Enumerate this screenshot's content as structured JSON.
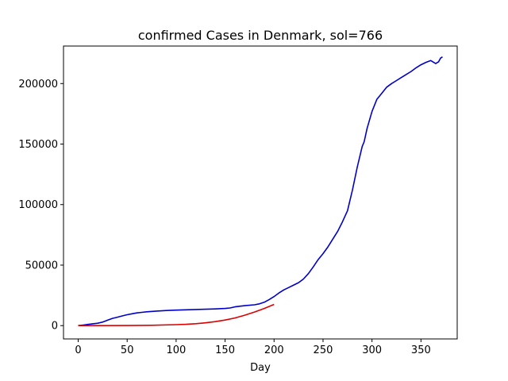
{
  "chart_data": {
    "type": "line",
    "title": "confirmed Cases in Denmark, sol=766",
    "xlabel": "Day",
    "ylabel": "",
    "xlim": [
      -15,
      387
    ],
    "ylim": [
      -11000,
      231000
    ],
    "xticks": [
      0,
      50,
      100,
      150,
      200,
      250,
      300,
      350
    ],
    "yticks": [
      0,
      50000,
      100000,
      150000,
      200000
    ],
    "grid": false,
    "legend": "none",
    "series": [
      {
        "color": "#0000cc",
        "x": [
          0,
          5,
          10,
          15,
          20,
          25,
          30,
          35,
          40,
          45,
          50,
          55,
          60,
          65,
          70,
          80,
          90,
          100,
          110,
          120,
          130,
          140,
          150,
          155,
          160,
          170,
          180,
          185,
          190,
          195,
          200,
          205,
          210,
          215,
          220,
          225,
          230,
          235,
          240,
          245,
          250,
          255,
          260,
          265,
          270,
          275,
          280,
          285,
          290,
          292,
          295,
          300,
          305,
          310,
          315,
          320,
          325,
          330,
          335,
          340,
          345,
          350,
          355,
          360,
          365,
          368,
          370,
          372
        ],
        "y": [
          0,
          500,
          1000,
          1500,
          2000,
          3000,
          4500,
          6000,
          7000,
          8000,
          9000,
          9800,
          10500,
          11000,
          11400,
          12000,
          12500,
          12800,
          13100,
          13300,
          13500,
          13800,
          14200,
          14600,
          15500,
          16500,
          17200,
          18000,
          19300,
          21500,
          24000,
          27000,
          29500,
          31500,
          33500,
          35500,
          38500,
          43000,
          48500,
          54500,
          59500,
          65000,
          71500,
          78000,
          86000,
          95000,
          112000,
          131000,
          148000,
          152000,
          163000,
          177000,
          187000,
          192000,
          197000,
          200000,
          202500,
          205000,
          207500,
          210000,
          213000,
          215500,
          217500,
          219000,
          216500,
          218000,
          221000,
          222000
        ]
      },
      {
        "color": "#dd0000",
        "x": [
          0,
          25,
          50,
          75,
          100,
          110,
          120,
          130,
          140,
          150,
          160,
          170,
          180,
          190,
          200
        ],
        "y": [
          0,
          30,
          100,
          300,
          800,
          1100,
          1600,
          2300,
          3300,
          4600,
          6300,
          8600,
          11200,
          14200,
          17500
        ]
      }
    ]
  }
}
